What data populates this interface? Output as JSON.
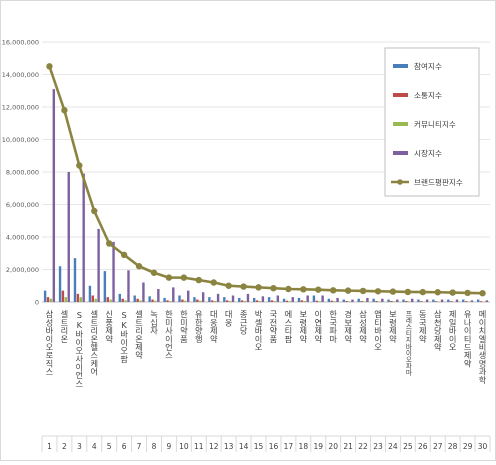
{
  "chart_data": {
    "type": "bar",
    "categories": [
      "삼성바이오로직스",
      "셀트리온",
      "SK바이오사이언스",
      "셀트리온헬스케어",
      "신풍제약",
      "SK바이오팜",
      "셀트리온제약",
      "녹십자",
      "한미사이언스",
      "한미약품",
      "유한양행",
      "대웅제약",
      "대웅",
      "종근당",
      "박셀바이오",
      "국전약품",
      "에스티팜",
      "보령제약",
      "이연제약",
      "한국파마",
      "경보제약",
      "삼성제약",
      "앱티바이오",
      "보령제약",
      "프레스티지바이오파마",
      "동국제약",
      "삼천당제약",
      "제일바이오",
      "유나이티드제약",
      "메이치엘비생명과학"
    ],
    "ranks": [
      "1",
      "2",
      "3",
      "4",
      "5",
      "6",
      "7",
      "8",
      "9",
      "10",
      "11",
      "12",
      "13",
      "14",
      "15",
      "16",
      "17",
      "18",
      "19",
      "20",
      "21",
      "22",
      "23",
      "24",
      "25",
      "26",
      "27",
      "28",
      "29",
      "30"
    ],
    "ylim": [
      0,
      16000000
    ],
    "yticks": [
      "0",
      "2,000,000",
      "4,000,000",
      "6,000,000",
      "8,000,000",
      "10,000,000",
      "12,000,000",
      "14,000,000",
      "16,000,000"
    ],
    "series": [
      {
        "name": "참여지수",
        "color": "#4a7ebb",
        "values": [
          700000,
          2200000,
          2700000,
          1000000,
          1900000,
          500000,
          400000,
          350000,
          250000,
          400000,
          300000,
          300000,
          300000,
          250000,
          250000,
          300000,
          200000,
          250000,
          400000,
          200000,
          150000,
          200000,
          200000,
          150000,
          150000,
          150000,
          150000,
          150000,
          150000,
          150000
        ]
      },
      {
        "name": "소통지수",
        "color": "#be4b48",
        "values": [
          300000,
          700000,
          500000,
          400000,
          300000,
          200000,
          200000,
          150000,
          100000,
          150000,
          150000,
          100000,
          100000,
          100000,
          100000,
          100000,
          80000,
          100000,
          80000,
          80000,
          60000,
          60000,
          60000,
          60000,
          60000,
          50000,
          50000,
          50000,
          50000,
          50000
        ]
      },
      {
        "name": "커뮤니티지수",
        "color": "#98b954",
        "values": [
          200000,
          300000,
          300000,
          200000,
          150000,
          100000,
          100000,
          80000,
          60000,
          80000,
          80000,
          60000,
          60000,
          60000,
          60000,
          60000,
          50000,
          60000,
          50000,
          50000,
          40000,
          40000,
          40000,
          40000,
          40000,
          30000,
          30000,
          30000,
          30000,
          30000
        ]
      },
      {
        "name": "시장지수",
        "color": "#7d60a0",
        "values": [
          13100000,
          8000000,
          7900000,
          4500000,
          3700000,
          1950000,
          1200000,
          800000,
          900000,
          700000,
          600000,
          500000,
          400000,
          500000,
          350000,
          400000,
          300000,
          400000,
          400000,
          250000,
          150000,
          250000,
          200000,
          150000,
          200000,
          150000,
          150000,
          150000,
          100000,
          100000
        ]
      },
      {
        "name": "브랜드평판지수",
        "color": "#8b8440",
        "type": "line",
        "values": [
          14500000,
          11800000,
          8400000,
          5600000,
          3600000,
          2900000,
          2200000,
          1800000,
          1500000,
          1500000,
          1350000,
          1200000,
          1000000,
          950000,
          900000,
          850000,
          800000,
          780000,
          760000,
          720000,
          700000,
          680000,
          660000,
          640000,
          620000,
          610000,
          600000,
          580000,
          560000,
          540000
        ]
      }
    ]
  }
}
